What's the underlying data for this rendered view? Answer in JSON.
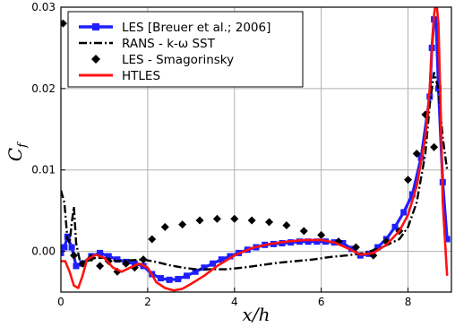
{
  "chart_data": {
    "type": "line",
    "xlabel": "x/h",
    "ylabel": "C_f",
    "xlim": [
      0,
      9
    ],
    "ylim": [
      -0.005,
      0.03
    ],
    "x_ticks": [
      0,
      2,
      4,
      6,
      8
    ],
    "y_ticks": [
      0.0,
      0.01,
      0.02,
      0.03
    ],
    "x_tick_labels": [
      "0",
      "2",
      "4",
      "6",
      "8"
    ],
    "y_tick_labels": [
      "0.00",
      "0.01",
      "0.02",
      "0.03"
    ],
    "grid": true,
    "legend_position": "top-left",
    "series": [
      {
        "name": "LES [Breuer et al.; 2006]",
        "color": "#1f1fff",
        "style": "solid-square-markers",
        "x": [
          0,
          0.08,
          0.15,
          0.25,
          0.35,
          0.5,
          0.7,
          0.9,
          1.1,
          1.3,
          1.5,
          1.7,
          1.9,
          2.1,
          2.3,
          2.5,
          2.7,
          2.9,
          3.1,
          3.3,
          3.5,
          3.7,
          3.9,
          4.1,
          4.3,
          4.5,
          4.7,
          4.9,
          5.1,
          5.3,
          5.5,
          5.7,
          5.9,
          6.1,
          6.3,
          6.5,
          6.7,
          6.9,
          7.1,
          7.3,
          7.5,
          7.7,
          7.9,
          8.1,
          8.3,
          8.5,
          8.55,
          8.6,
          8.65,
          8.7,
          8.8,
          8.9
        ],
        "y": [
          -0.0002,
          0.0005,
          0.0018,
          0.0005,
          -0.0018,
          -0.0015,
          -0.0006,
          -0.0002,
          -0.0006,
          -0.001,
          -0.0013,
          -0.0015,
          -0.0018,
          -0.0028,
          -0.0033,
          -0.0035,
          -0.0034,
          -0.003,
          -0.0025,
          -0.002,
          -0.0015,
          -0.001,
          -0.0006,
          -0.0002,
          0.0002,
          0.0005,
          0.0008,
          0.0009,
          0.001,
          0.0011,
          0.0012,
          0.0012,
          0.0012,
          0.0012,
          0.0011,
          0.001,
          0.0003,
          -0.0005,
          -0.0003,
          0.0005,
          0.0015,
          0.003,
          0.0048,
          0.007,
          0.0115,
          0.019,
          0.025,
          0.0285,
          0.028,
          0.02,
          0.0085,
          0.0015
        ]
      },
      {
        "name": "RANS - k-ω SST",
        "color": "#000000",
        "style": "dash-dot",
        "x": [
          0,
          0.08,
          0.15,
          0.2,
          0.25,
          0.3,
          0.35,
          0.45,
          0.6,
          0.8,
          1.0,
          1.3,
          1.6,
          1.9,
          2.2,
          2.5,
          2.8,
          3.1,
          3.4,
          3.8,
          4.2,
          4.6,
          5.0,
          5.4,
          5.8,
          6.2,
          6.6,
          7.0,
          7.4,
          7.8,
          8.0,
          8.2,
          8.4,
          8.5,
          8.6,
          8.7,
          8.8,
          8.9
        ],
        "y": [
          0.0075,
          0.006,
          0.0015,
          0.001,
          0.0035,
          0.0055,
          0.001,
          -0.0015,
          -0.0012,
          -0.0008,
          -0.0008,
          -0.0012,
          -0.0011,
          -0.001,
          -0.0013,
          -0.0017,
          -0.002,
          -0.0022,
          -0.0022,
          -0.0022,
          -0.002,
          -0.0017,
          -0.0014,
          -0.0012,
          -0.001,
          -0.0007,
          -0.0005,
          -0.0002,
          0.0005,
          0.0015,
          0.003,
          0.006,
          0.012,
          0.018,
          0.022,
          0.02,
          0.014,
          0.01
        ]
      },
      {
        "name": "LES - Smagorinsky",
        "color": "#000000",
        "style": "diamond-markers",
        "x": [
          0.05,
          0.3,
          0.5,
          0.7,
          0.9,
          1.1,
          1.3,
          1.5,
          1.7,
          1.9,
          2.1,
          2.4,
          2.8,
          3.2,
          3.6,
          4.0,
          4.4,
          4.8,
          5.2,
          5.6,
          6.0,
          6.4,
          6.8,
          7.2,
          7.5,
          7.8,
          8.0,
          8.2,
          8.4,
          8.6
        ],
        "y": [
          0.028,
          -0.0005,
          -0.0015,
          -0.0008,
          -0.0018,
          -0.0012,
          -0.0025,
          -0.0015,
          -0.002,
          -0.001,
          0.0015,
          0.003,
          0.0033,
          0.0038,
          0.004,
          0.004,
          0.0038,
          0.0036,
          0.0032,
          0.0025,
          0.002,
          0.0012,
          0.0005,
          -0.0005,
          0.0012,
          0.0025,
          0.0088,
          0.012,
          0.0168,
          0.0128
        ]
      },
      {
        "name": "HTLES",
        "color": "#ff1111",
        "style": "solid",
        "x": [
          0,
          0.1,
          0.2,
          0.3,
          0.4,
          0.5,
          0.6,
          0.8,
          1.0,
          1.2,
          1.4,
          1.6,
          1.8,
          2.0,
          2.2,
          2.4,
          2.6,
          2.8,
          3.0,
          3.3,
          3.6,
          4.0,
          4.4,
          4.8,
          5.2,
          5.6,
          6.0,
          6.3,
          6.6,
          6.9,
          7.2,
          7.5,
          7.8,
          8.0,
          8.2,
          8.4,
          8.5,
          8.55,
          8.6,
          8.65,
          8.7,
          8.75,
          8.8,
          8.9
        ],
        "y": [
          -0.0012,
          -0.0012,
          -0.0025,
          -0.0042,
          -0.0045,
          -0.003,
          -0.001,
          -0.0004,
          -0.0008,
          -0.002,
          -0.0025,
          -0.002,
          -0.0015,
          -0.002,
          -0.0038,
          -0.0045,
          -0.0048,
          -0.0046,
          -0.004,
          -0.003,
          -0.0018,
          -0.0005,
          0.0004,
          0.0009,
          0.0012,
          0.0014,
          0.0014,
          0.0011,
          0.0004,
          -0.0004,
          -0.0002,
          0.0008,
          0.0025,
          0.0045,
          0.008,
          0.014,
          0.02,
          0.025,
          0.029,
          0.031,
          0.028,
          0.018,
          0.006,
          -0.003
        ]
      }
    ]
  },
  "legend": {
    "items": [
      {
        "label": "LES [Breuer et al.; 2006]"
      },
      {
        "label": "RANS - k-ω SST"
      },
      {
        "label": "LES - Smagorinsky"
      },
      {
        "label": "HTLES"
      }
    ]
  }
}
